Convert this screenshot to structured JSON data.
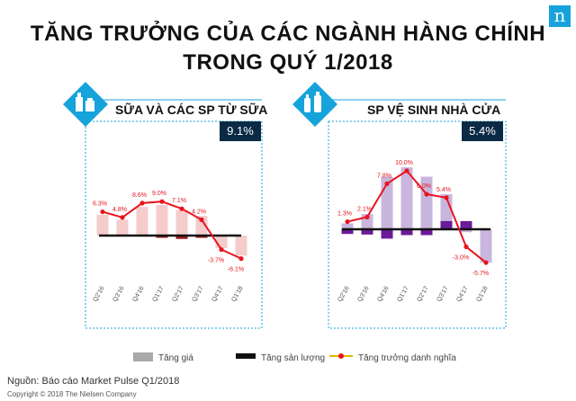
{
  "title_line1": "TĂNG TRƯỞNG CỦA CÁC NGÀNH HÀNG CHÍNH",
  "title_line2": "TRONG QUÝ 1/2018",
  "logo_letter": "n",
  "colors": {
    "accent": "#16a3dc",
    "badge_bg": "#0b2a45",
    "line": "#e8141e",
    "price_bar_left": "#f4cccc",
    "volume_bar_left": "#9e1c1c",
    "price_bar_right": "#c9b6dd",
    "volume_bar_right": "#6a1b9a",
    "baseline": "#111111"
  },
  "panels": [
    {
      "title": "SỮA VÀ CÁC SP TỪ SỮA",
      "badge": "9.1%",
      "icon": "dairy-products-icon"
    },
    {
      "title": "SP VỆ SINH NHÀ CỬA",
      "badge": "5.4%",
      "icon": "cleaning-products-icon"
    }
  ],
  "legend": {
    "price": "Tăng giá",
    "volume": "Tăng sản lượng",
    "nominal": "Tăng trưởng danh nghĩa"
  },
  "footer": {
    "source": "Nguồn: Báo cáo Market Pulse Q1/2018",
    "copyright": "Copyright © 2018  The Nielsen Company"
  },
  "chart_data": [
    {
      "type": "bar",
      "title": "SỮA VÀ CÁC SP TỪ SỮA",
      "categories": [
        "Q2'16",
        "Q3'16",
        "Q4'16",
        "Q1'17",
        "Q2'17",
        "Q3'17",
        "Q4'17",
        "Q1'18"
      ],
      "series": [
        {
          "name": "Tăng giá",
          "kind": "bar",
          "values": [
            5.5,
            4.2,
            7.6,
            8.1,
            6.8,
            5.2,
            -3.3,
            -5.3
          ]
        },
        {
          "name": "Tăng sản lượng",
          "kind": "bar",
          "values": [
            0.0,
            0.0,
            0.0,
            -0.6,
            -0.9,
            -0.6,
            -0.2,
            0.0
          ]
        },
        {
          "name": "Tăng trưởng danh nghĩa",
          "kind": "line",
          "values": [
            6.3,
            4.8,
            8.6,
            9.0,
            7.1,
            4.2,
            -3.7,
            -6.1
          ]
        }
      ],
      "data_labels": [
        "6.3%",
        "4.8%",
        "8.6%",
        "9.0%",
        "7.1%",
        "4.2%",
        "-3.7%",
        "-6.1%"
      ],
      "ylim": [
        -7,
        11
      ]
    },
    {
      "type": "bar",
      "title": "SP VỆ SINH NHÀ CỬA",
      "categories": [
        "Q2'16",
        "Q3'16",
        "Q4'16",
        "Q1'17",
        "Q2'17",
        "Q3'17",
        "Q4'17",
        "Q1'18"
      ],
      "series": [
        {
          "name": "Tăng giá",
          "kind": "bar",
          "values": [
            1.0,
            2.6,
            9.0,
            10.6,
            9.0,
            6.0,
            -0.5,
            -5.7
          ]
        },
        {
          "name": "Tăng sản lượng",
          "kind": "bar",
          "values": [
            -0.8,
            -0.9,
            -1.6,
            -1.0,
            -1.0,
            1.4,
            1.4,
            0.0
          ]
        },
        {
          "name": "Tăng trưởng danh nghĩa",
          "kind": "line",
          "values": [
            1.3,
            2.1,
            7.8,
            10.0,
            6.0,
            5.4,
            -3.0,
            -5.7
          ]
        }
      ],
      "data_labels": [
        "1.3%",
        "2.1%",
        "7.8%",
        "10.0%",
        "6.0%",
        "5.4%",
        "-3.0%",
        "-5.7%"
      ],
      "ylim": [
        -7,
        11
      ]
    }
  ]
}
